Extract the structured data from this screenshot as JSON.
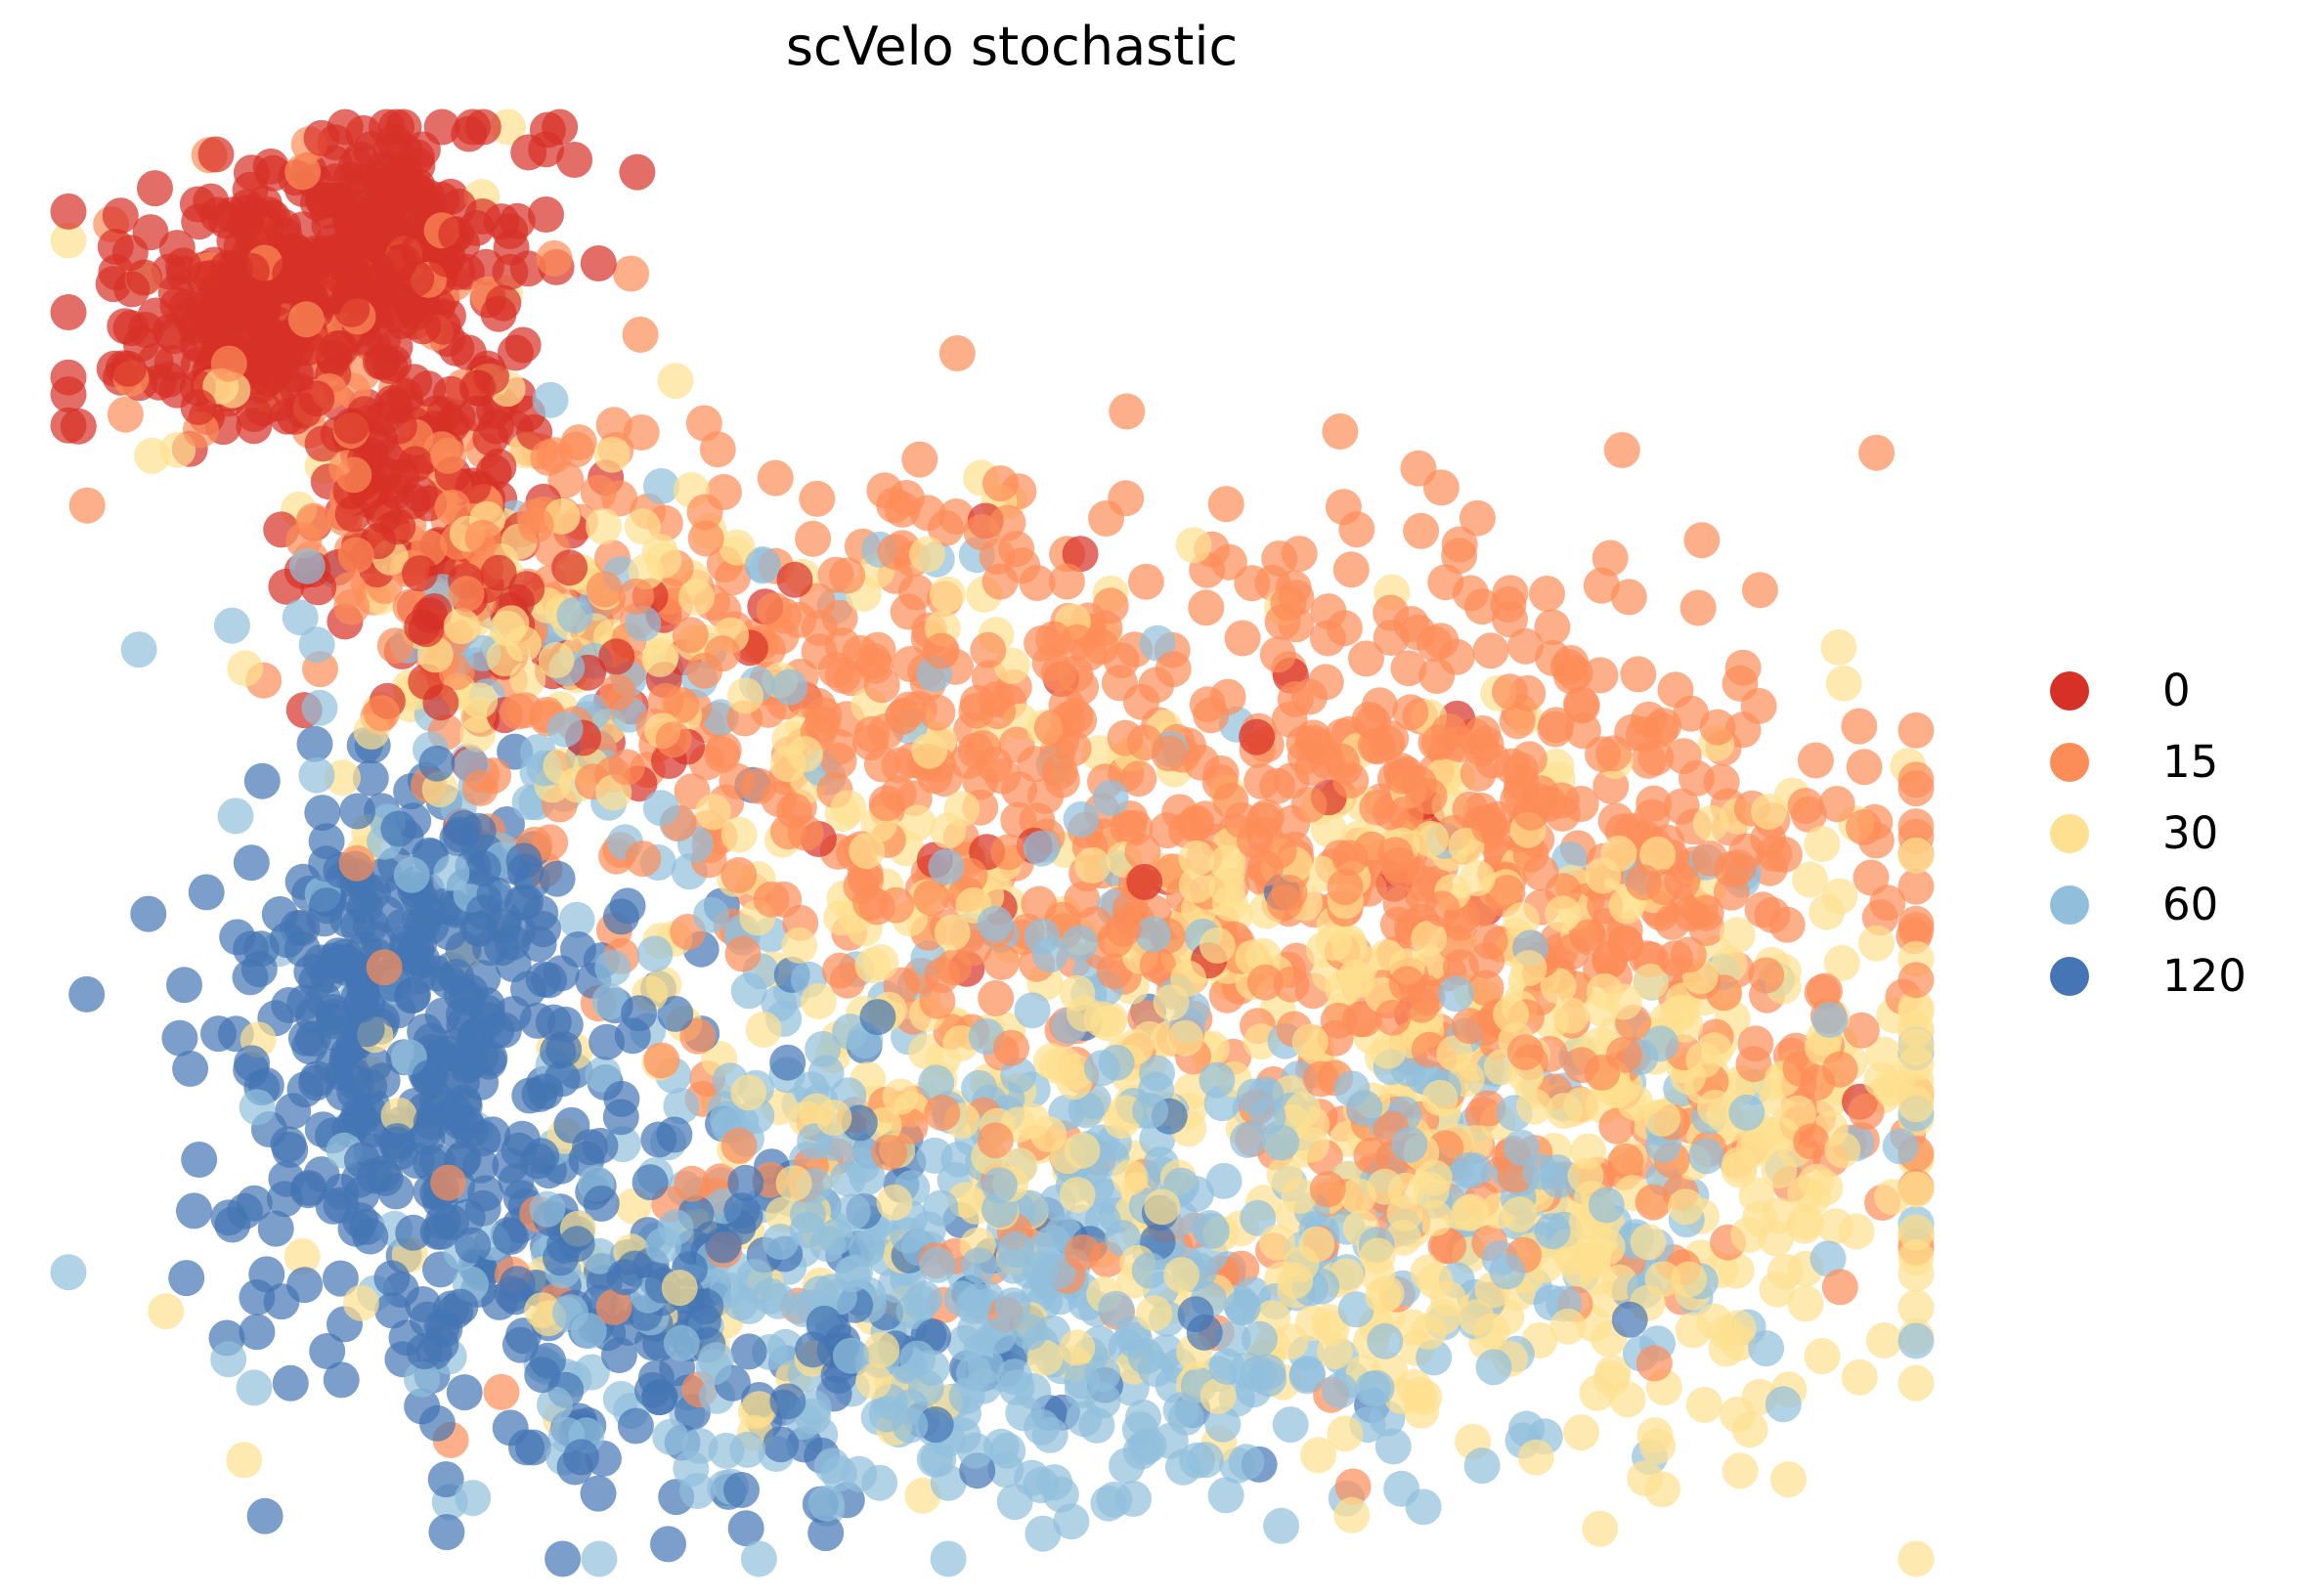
{
  "chart_data": {
    "type": "scatter",
    "title": "scVelo stochastic",
    "xlabel": "",
    "ylabel": "",
    "axes_visible": false,
    "grid": false,
    "background": "#ffffff",
    "legend": {
      "position": "right-center",
      "labels": [
        "0",
        "15",
        "30",
        "60",
        "120"
      ]
    },
    "point_style": {
      "radius_px": 18.5,
      "opacity": 0.7
    },
    "pixel_extent": {
      "x": [
        70,
        1960
      ],
      "y": [
        130,
        1595
      ]
    },
    "series": [
      {
        "name": "0",
        "color": "#d73027",
        "clusters": [
          {
            "cx": 320,
            "cy": 285,
            "sx": 105,
            "sy": 62,
            "rot": -22,
            "n": 430
          },
          {
            "cx": 425,
            "cy": 500,
            "sx": 65,
            "sy": 75,
            "rot": 0,
            "n": 110
          },
          {
            "cx": 540,
            "cy": 640,
            "sx": 110,
            "sy": 85,
            "rot": 0,
            "n": 55
          },
          {
            "cx": 950,
            "cy": 820,
            "sx": 280,
            "sy": 160,
            "rot": 0,
            "n": 22
          },
          {
            "cx": 1500,
            "cy": 950,
            "sx": 250,
            "sy": 120,
            "rot": 0,
            "n": 8
          }
        ]
      },
      {
        "name": "15",
        "color": "#fc8d59",
        "clusters": [
          {
            "cx": 330,
            "cy": 300,
            "sx": 110,
            "sy": 75,
            "rot": -20,
            "n": 45
          },
          {
            "cx": 500,
            "cy": 560,
            "sx": 110,
            "sy": 100,
            "rot": 0,
            "n": 120
          },
          {
            "cx": 800,
            "cy": 700,
            "sx": 170,
            "sy": 110,
            "rot": 0,
            "n": 150
          },
          {
            "cx": 1150,
            "cy": 600,
            "sx": 280,
            "sy": 70,
            "rot": 0,
            "n": 45
          },
          {
            "cx": 1480,
            "cy": 860,
            "sx": 260,
            "sy": 130,
            "rot": 0,
            "n": 430
          },
          {
            "cx": 1050,
            "cy": 900,
            "sx": 220,
            "sy": 140,
            "rot": 0,
            "n": 150
          },
          {
            "cx": 1650,
            "cy": 1120,
            "sx": 200,
            "sy": 120,
            "rot": 0,
            "n": 150
          },
          {
            "cx": 1000,
            "cy": 1150,
            "sx": 280,
            "sy": 140,
            "rot": 0,
            "n": 50
          },
          {
            "cx": 700,
            "cy": 1300,
            "sx": 250,
            "sy": 120,
            "rot": 0,
            "n": 15
          }
        ]
      },
      {
        "name": "30",
        "color": "#fee090",
        "clusters": [
          {
            "cx": 350,
            "cy": 330,
            "sx": 120,
            "sy": 85,
            "rot": -20,
            "n": 18
          },
          {
            "cx": 560,
            "cy": 640,
            "sx": 130,
            "sy": 110,
            "rot": 0,
            "n": 85
          },
          {
            "cx": 1050,
            "cy": 1000,
            "sx": 260,
            "sy": 160,
            "rot": 0,
            "n": 230
          },
          {
            "cx": 1520,
            "cy": 950,
            "sx": 240,
            "sy": 130,
            "rot": 0,
            "n": 120
          },
          {
            "cx": 1620,
            "cy": 1230,
            "sx": 220,
            "sy": 130,
            "rot": 0,
            "n": 260
          },
          {
            "cx": 950,
            "cy": 1330,
            "sx": 300,
            "sy": 120,
            "rot": 0,
            "n": 80
          },
          {
            "cx": 1750,
            "cy": 1100,
            "sx": 150,
            "sy": 120,
            "rot": 0,
            "n": 60
          },
          {
            "cx": 900,
            "cy": 560,
            "sx": 200,
            "sy": 80,
            "rot": 0,
            "n": 20
          }
        ]
      },
      {
        "name": "60",
        "color": "#91bfdb",
        "clusters": [
          {
            "cx": 950,
            "cy": 1310,
            "sx": 260,
            "sy": 120,
            "rot": 0,
            "n": 300
          },
          {
            "cx": 1400,
            "cy": 1240,
            "sx": 210,
            "sy": 110,
            "rot": 0,
            "n": 150
          },
          {
            "cx": 950,
            "cy": 980,
            "sx": 260,
            "sy": 140,
            "rot": 0,
            "n": 80
          },
          {
            "cx": 490,
            "cy": 790,
            "sx": 120,
            "sy": 110,
            "rot": 0,
            "n": 55
          },
          {
            "cx": 680,
            "cy": 620,
            "sx": 160,
            "sy": 90,
            "rot": 0,
            "n": 25
          },
          {
            "cx": 1050,
            "cy": 1460,
            "sx": 220,
            "sy": 60,
            "rot": 0,
            "n": 70
          },
          {
            "cx": 1700,
            "cy": 1050,
            "sx": 150,
            "sy": 120,
            "rot": 0,
            "n": 30
          }
        ]
      },
      {
        "name": "120",
        "color": "#4575b4",
        "clusters": [
          {
            "cx": 390,
            "cy": 900,
            "sx": 80,
            "sy": 70,
            "rot": 0,
            "n": 70
          },
          {
            "cx": 430,
            "cy": 1110,
            "sx": 110,
            "sy": 140,
            "rot": 0,
            "n": 300
          },
          {
            "cx": 660,
            "cy": 1350,
            "sx": 150,
            "sy": 100,
            "rot": 0,
            "n": 140
          },
          {
            "cx": 950,
            "cy": 1380,
            "sx": 220,
            "sy": 90,
            "rot": 0,
            "n": 50
          },
          {
            "cx": 800,
            "cy": 1050,
            "sx": 220,
            "sy": 130,
            "rot": 0,
            "n": 25
          }
        ]
      }
    ]
  }
}
